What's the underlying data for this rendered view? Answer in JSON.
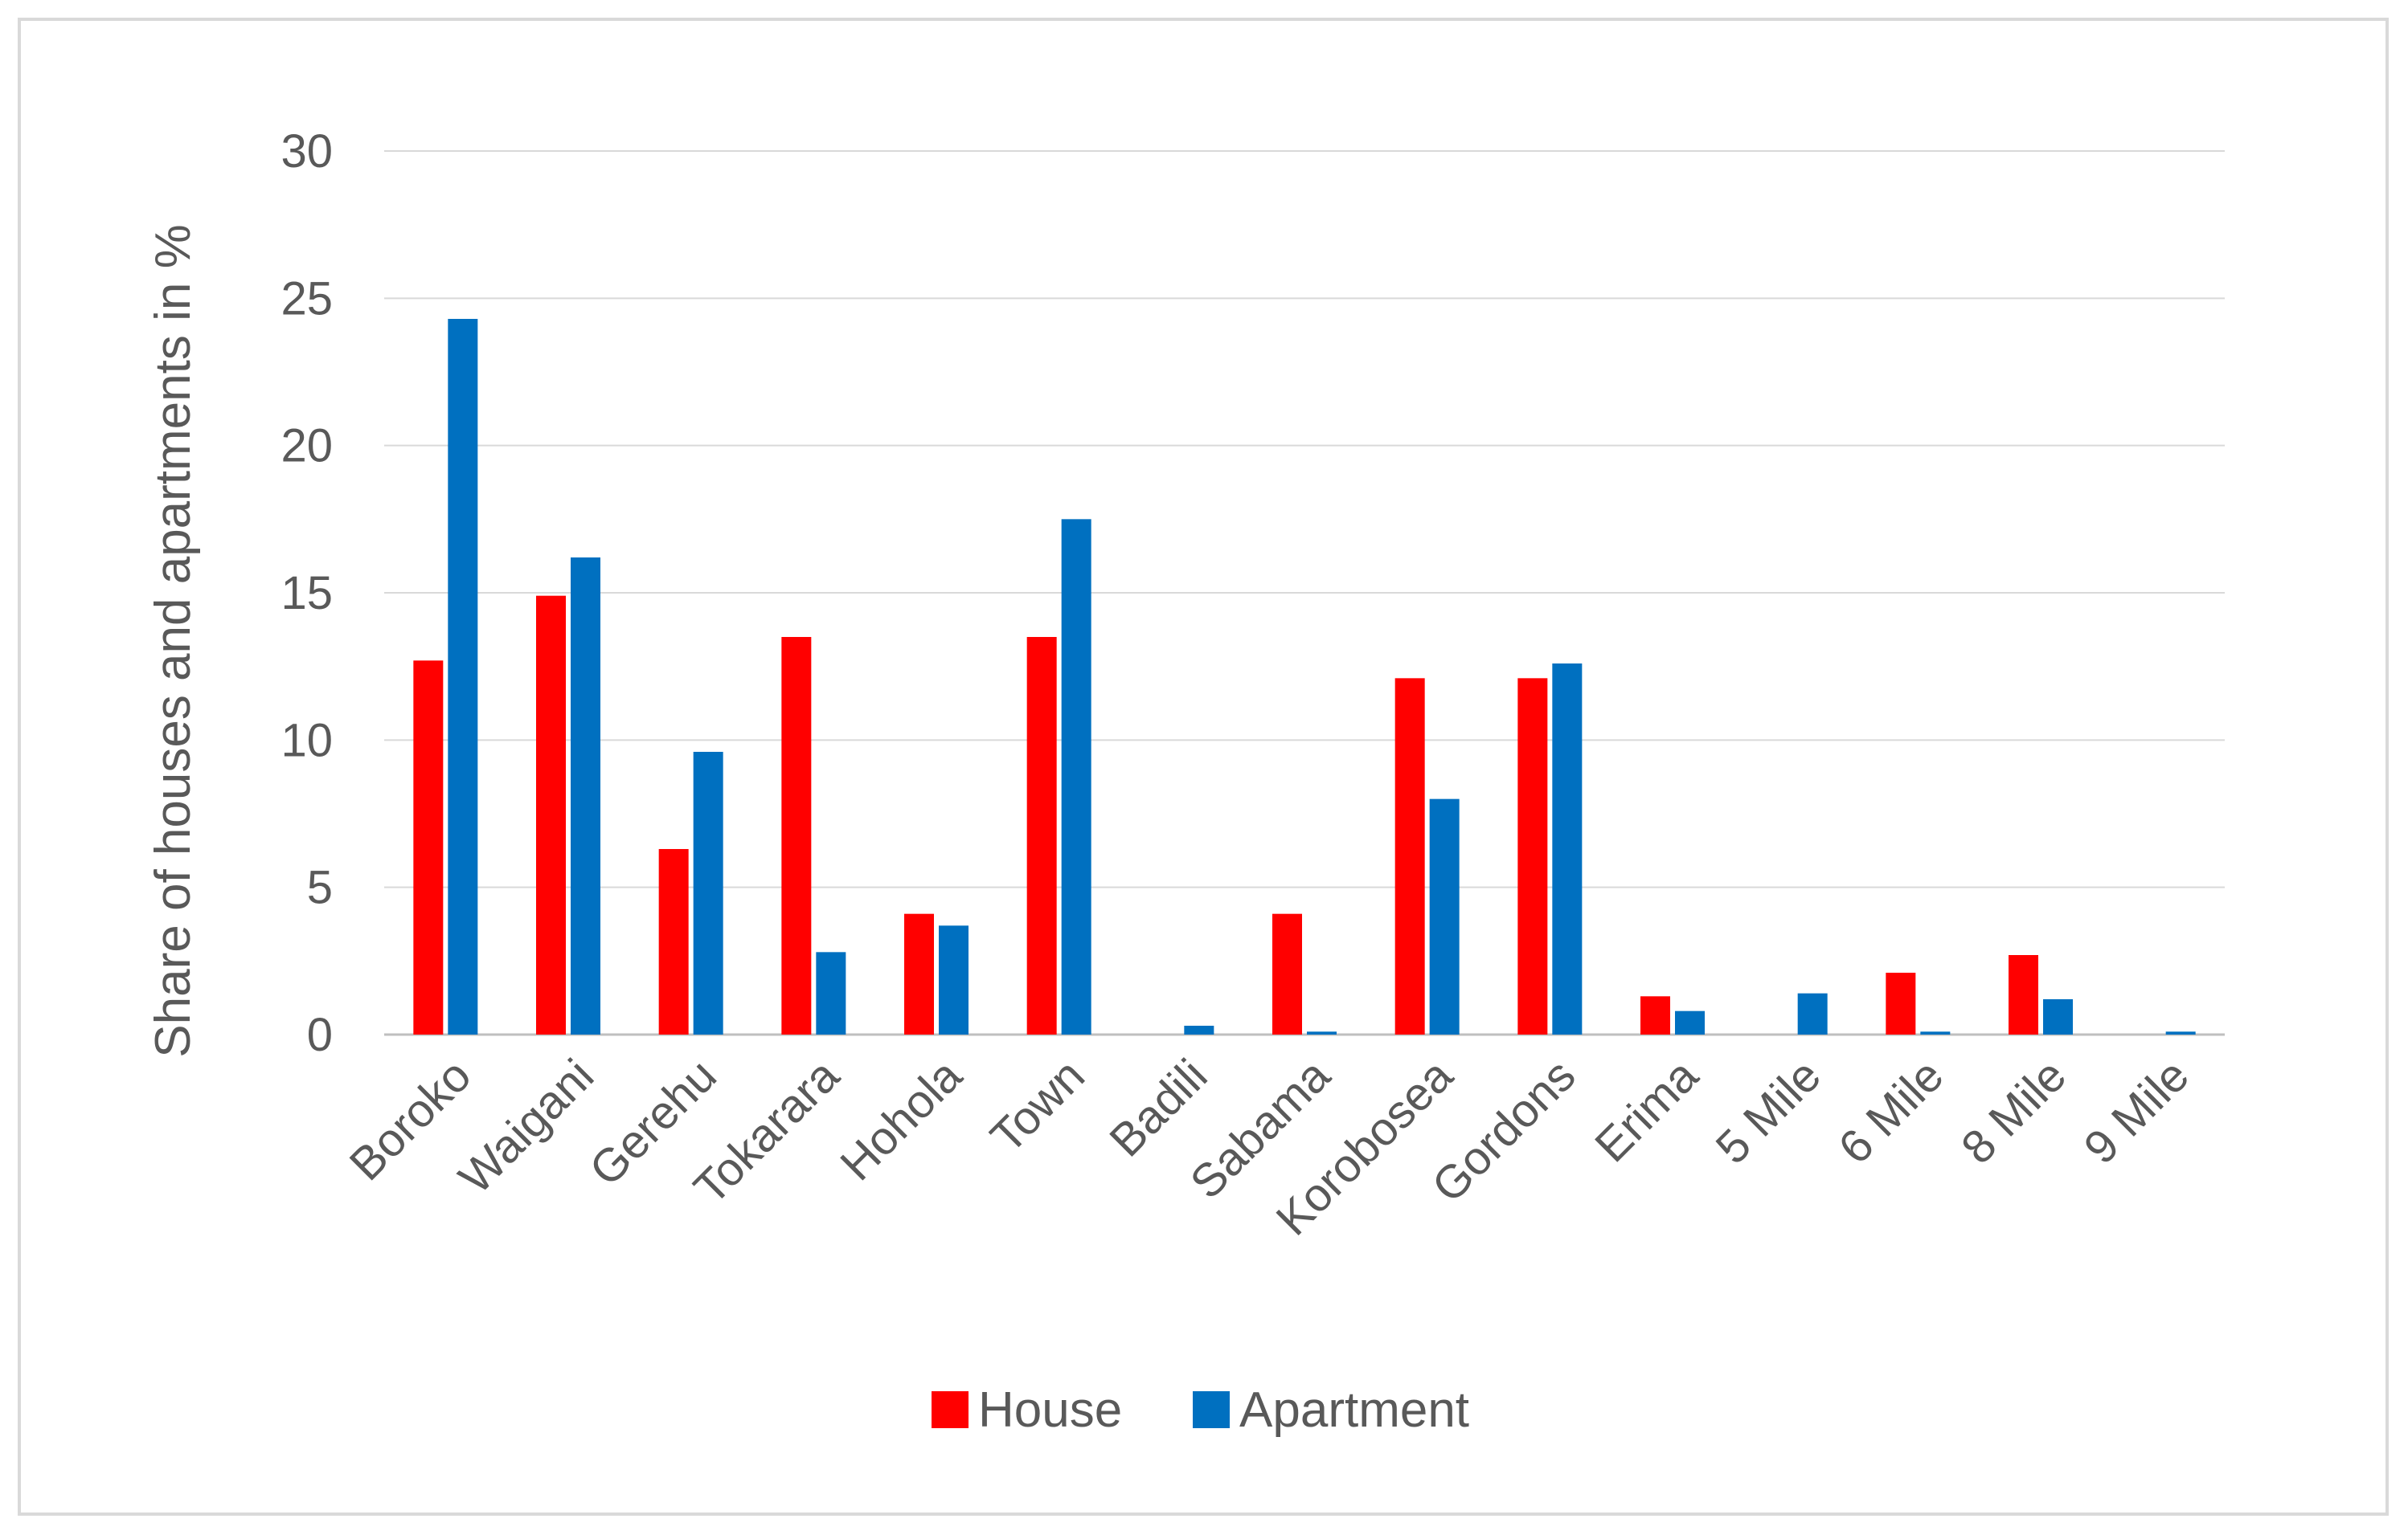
{
  "chart_data": {
    "type": "bar",
    "title": "",
    "xlabel": "",
    "ylabel": "Share of houses and apartments in %",
    "ylim": [
      0,
      30
    ],
    "yticks": [
      0,
      5,
      10,
      15,
      20,
      25,
      30
    ],
    "grid": true,
    "legend_position": "bottom",
    "categories": [
      "Boroko",
      "Waigani",
      "Gerehu",
      "Tokarara",
      "Hohola",
      "Town",
      "Badili",
      "Sabama",
      "Korobosea",
      "Gordons",
      "Erima",
      "5 Mile",
      "6 Mile",
      "8 Mile",
      "9 Mile"
    ],
    "series": [
      {
        "name": "House",
        "color": "#ff0000",
        "values": [
          12.7,
          14.9,
          6.3,
          13.5,
          4.1,
          13.5,
          0,
          4.1,
          12.1,
          12.1,
          1.3,
          0,
          2.1,
          2.7,
          0
        ]
      },
      {
        "name": "Apartment",
        "color": "#0070c0",
        "values": [
          24.3,
          16.2,
          9.6,
          2.8,
          3.7,
          17.5,
          0.3,
          0.1,
          8.0,
          12.6,
          0.8,
          1.4,
          0.1,
          1.2,
          0.1
        ]
      }
    ]
  }
}
